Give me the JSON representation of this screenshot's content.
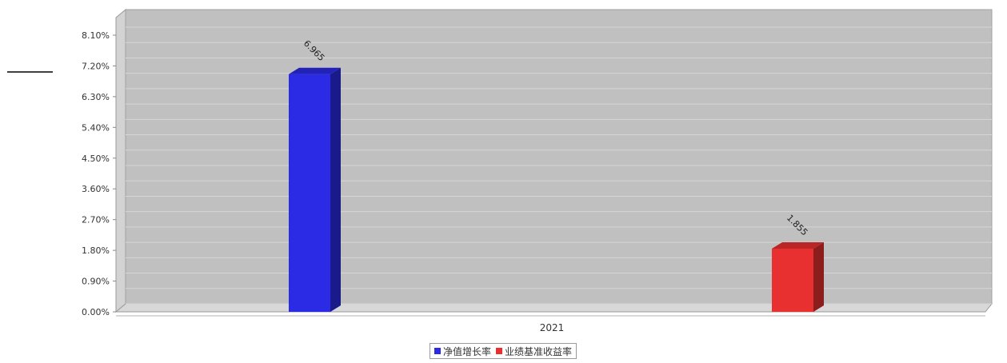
{
  "chart_data": {
    "type": "bar",
    "categories": [
      "2021"
    ],
    "series": [
      {
        "name": "净值增长率",
        "values": [
          6.96
        ],
        "color": "#2b2be6",
        "label": "6.965"
      },
      {
        "name": "业绩基准收益率",
        "values": [
          1.85
        ],
        "color": "#e83030",
        "label": "1.855"
      }
    ],
    "y_ticks": [
      "0.00%",
      "0.90%",
      "1.80%",
      "2.70%",
      "3.60%",
      "4.50%",
      "5.40%",
      "6.30%",
      "7.20%",
      "8.10%"
    ],
    "ylim": [
      0,
      8.1
    ],
    "grid": true,
    "legend_position": "bottom-center",
    "title": "",
    "xlabel": "",
    "ylabel": ""
  }
}
